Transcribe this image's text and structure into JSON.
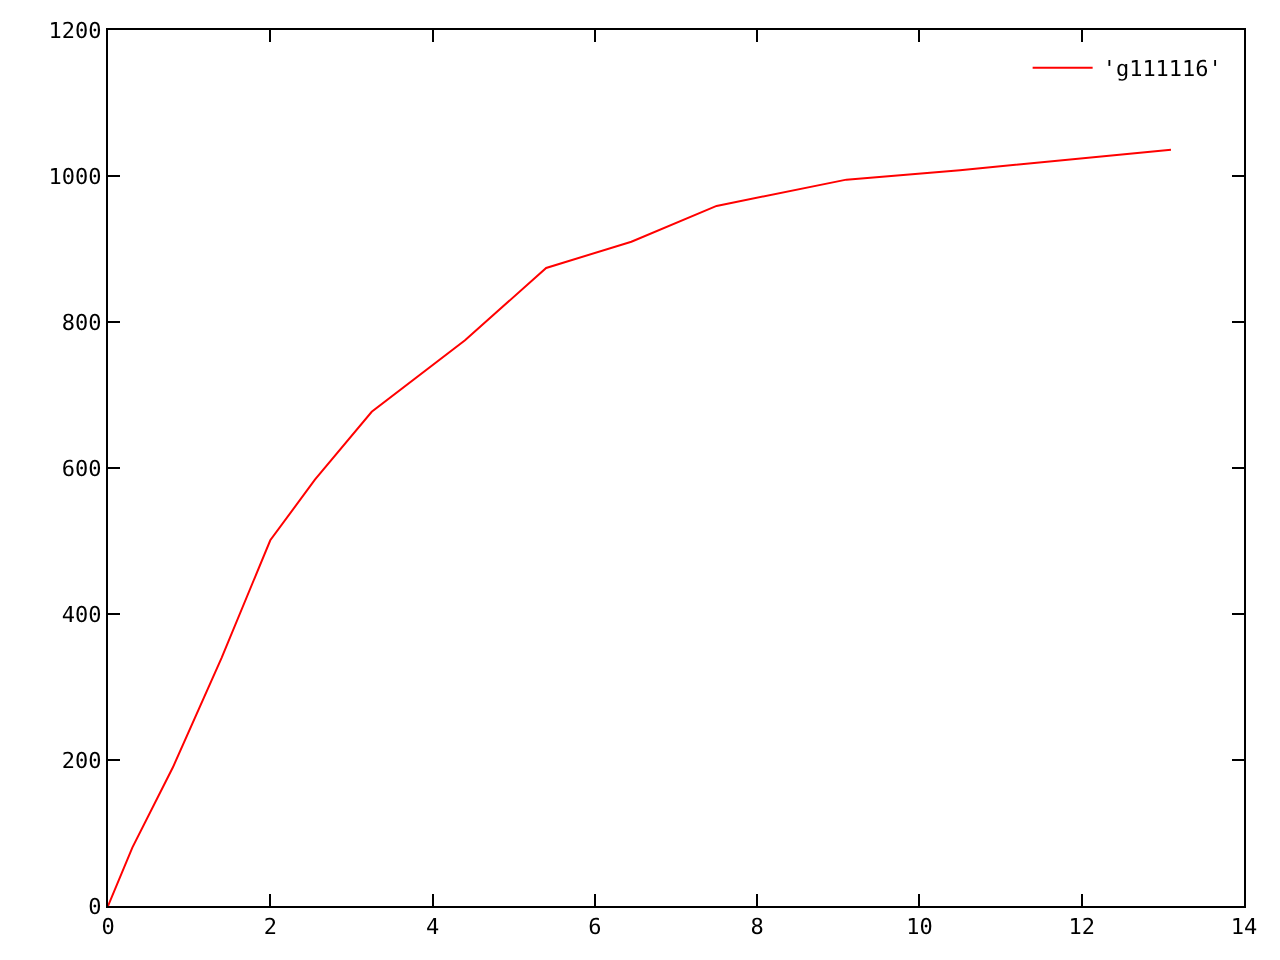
{
  "chart_data": {
    "type": "line",
    "x": [
      0,
      0.3,
      0.8,
      1.4,
      2.0,
      2.55,
      3.25,
      4.4,
      5.4,
      6.45,
      7.5,
      9.1,
      10.5,
      13.1
    ],
    "series": [
      {
        "name": "'g111116'",
        "color": "#ff0000",
        "values": [
          0,
          80,
          190,
          340,
          501,
          584,
          677,
          775,
          874,
          910,
          959,
          995,
          1008,
          1036
        ]
      }
    ],
    "xlim": [
      0,
      14
    ],
    "ylim": [
      0,
      1200
    ],
    "xticks": [
      0,
      2,
      4,
      6,
      8,
      10,
      12,
      14
    ],
    "yticks": [
      0,
      200,
      400,
      600,
      800,
      1000,
      1200
    ],
    "grid": false,
    "legend": "top right",
    "marker": "none",
    "line_style": "solid"
  }
}
